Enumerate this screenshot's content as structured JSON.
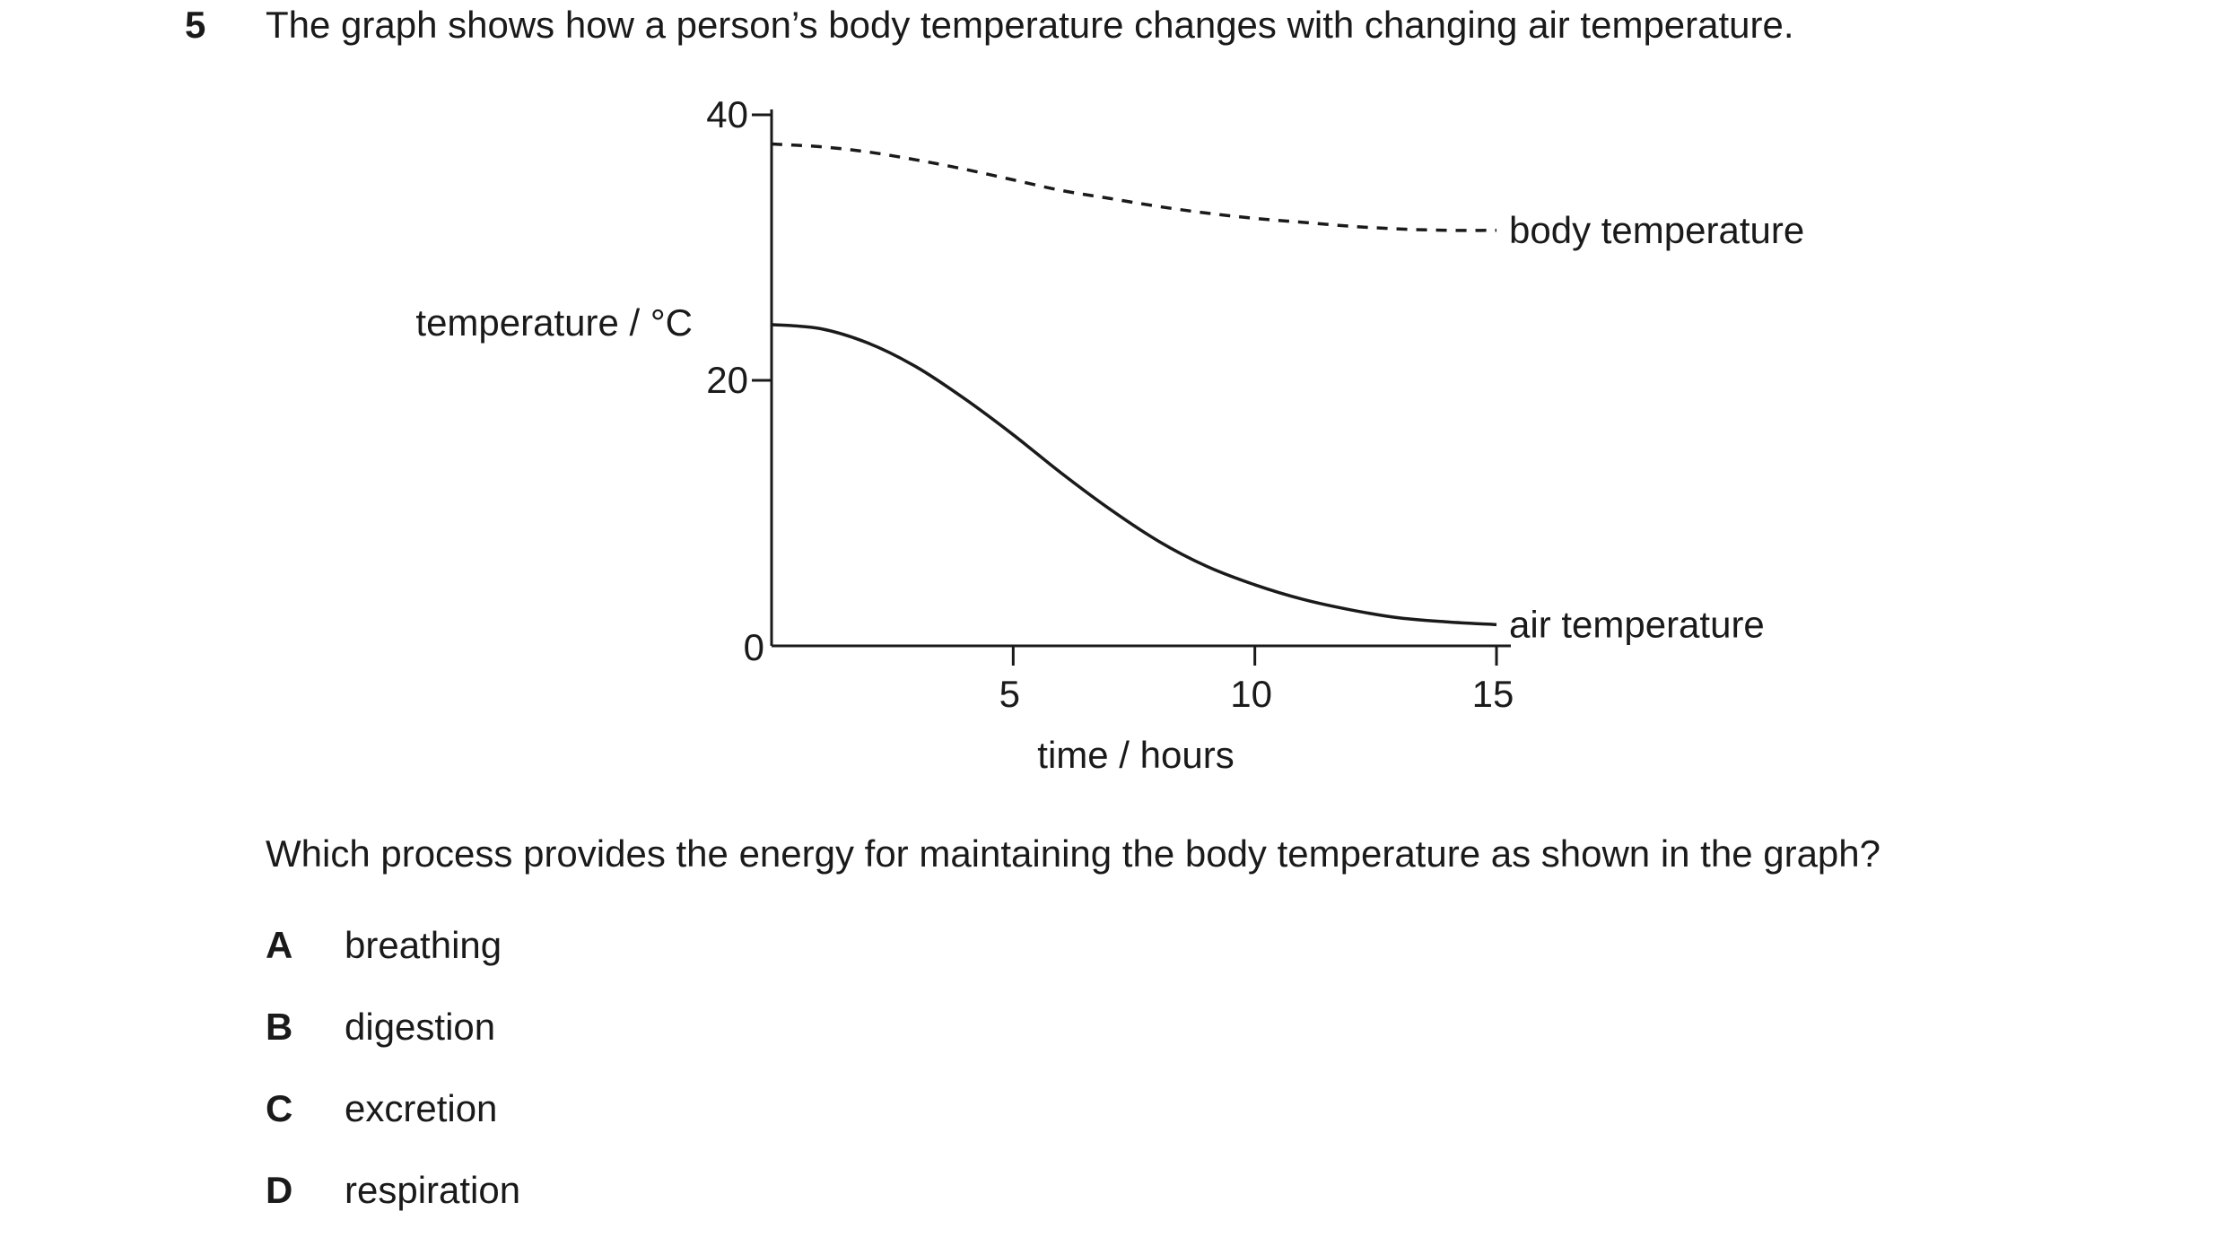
{
  "question": {
    "number": "5",
    "stem": "The graph shows how a person’s body temperature changes with changing air temperature.",
    "prompt": "Which process provides the energy for maintaining the body temperature as shown in the graph?",
    "options": [
      {
        "letter": "A",
        "text": "breathing"
      },
      {
        "letter": "B",
        "text": "digestion"
      },
      {
        "letter": "C",
        "text": "excretion"
      },
      {
        "letter": "D",
        "text": "respiration"
      }
    ]
  },
  "chart_data": {
    "type": "line",
    "title": "",
    "xlabel": "time / hours",
    "ylabel": "temperature / °C",
    "xlim": [
      0,
      15
    ],
    "ylim": [
      0,
      40
    ],
    "xticks": [
      "5",
      "10",
      "15"
    ],
    "yticks": [
      "0",
      "20",
      "40"
    ],
    "grid": false,
    "legend": "none",
    "series": [
      {
        "name": "body temperature",
        "style": "dashed",
        "color": "#1a1a1a",
        "x": [
          0,
          1,
          2,
          3,
          4,
          5,
          6,
          7,
          8,
          9,
          10,
          11,
          12,
          13,
          14,
          15
        ],
        "y": [
          37.8,
          37.6,
          37.2,
          36.6,
          35.9,
          35.1,
          34.3,
          33.7,
          33.1,
          32.6,
          32.2,
          31.9,
          31.6,
          31.4,
          31.3,
          31.3
        ]
      },
      {
        "name": "air temperature",
        "style": "solid",
        "color": "#1a1a1a",
        "x": [
          0,
          1,
          2,
          3,
          4,
          5,
          6,
          7,
          8,
          9,
          10,
          11,
          12,
          13,
          14,
          15
        ],
        "y": [
          24.2,
          23.9,
          22.8,
          21.0,
          18.6,
          15.9,
          13.0,
          10.3,
          7.9,
          6.0,
          4.6,
          3.5,
          2.7,
          2.1,
          1.8,
          1.6
        ]
      }
    ]
  }
}
